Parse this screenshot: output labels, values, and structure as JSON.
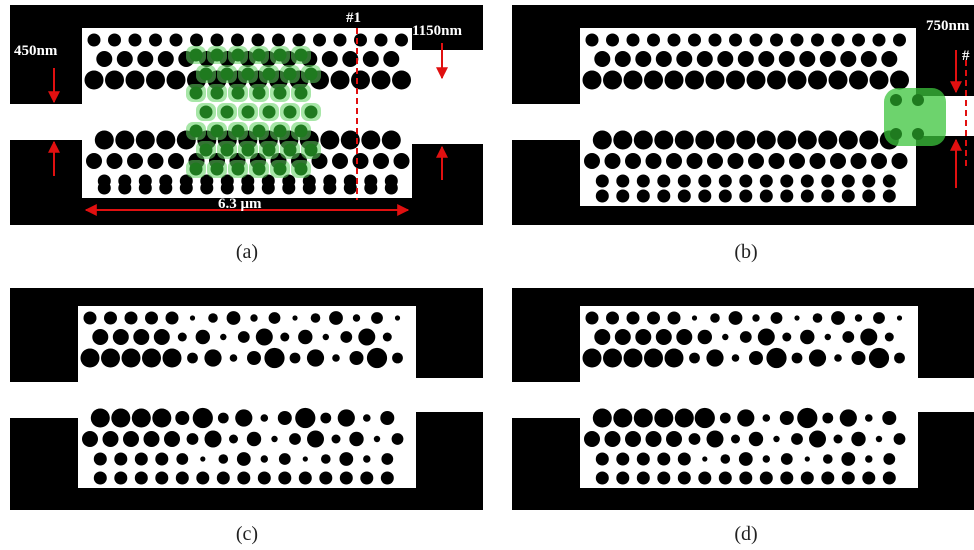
{
  "figure": {
    "panels": [
      {
        "id": "a",
        "caption": "(a)",
        "annotations": {
          "input_width": "450nm",
          "output_width": "1150nm",
          "length": "6.3 μm",
          "cut_marker": "#1"
        },
        "highlight": "green-hole-region",
        "output_width_nm": 1150
      },
      {
        "id": "b",
        "caption": "(b)",
        "annotations": {
          "output_width": "750nm",
          "cut_marker": "#"
        },
        "highlight": "green-output-region",
        "output_width_nm": 750
      },
      {
        "id": "c",
        "caption": "(c)",
        "highlight": "disordered-holes"
      },
      {
        "id": "d",
        "caption": "(d)",
        "highlight": "disordered-holes"
      }
    ],
    "colors": {
      "background": "#000000",
      "device": "#ffffff",
      "arrow": "#e01010",
      "highlight_green": "#3cc43c"
    }
  }
}
